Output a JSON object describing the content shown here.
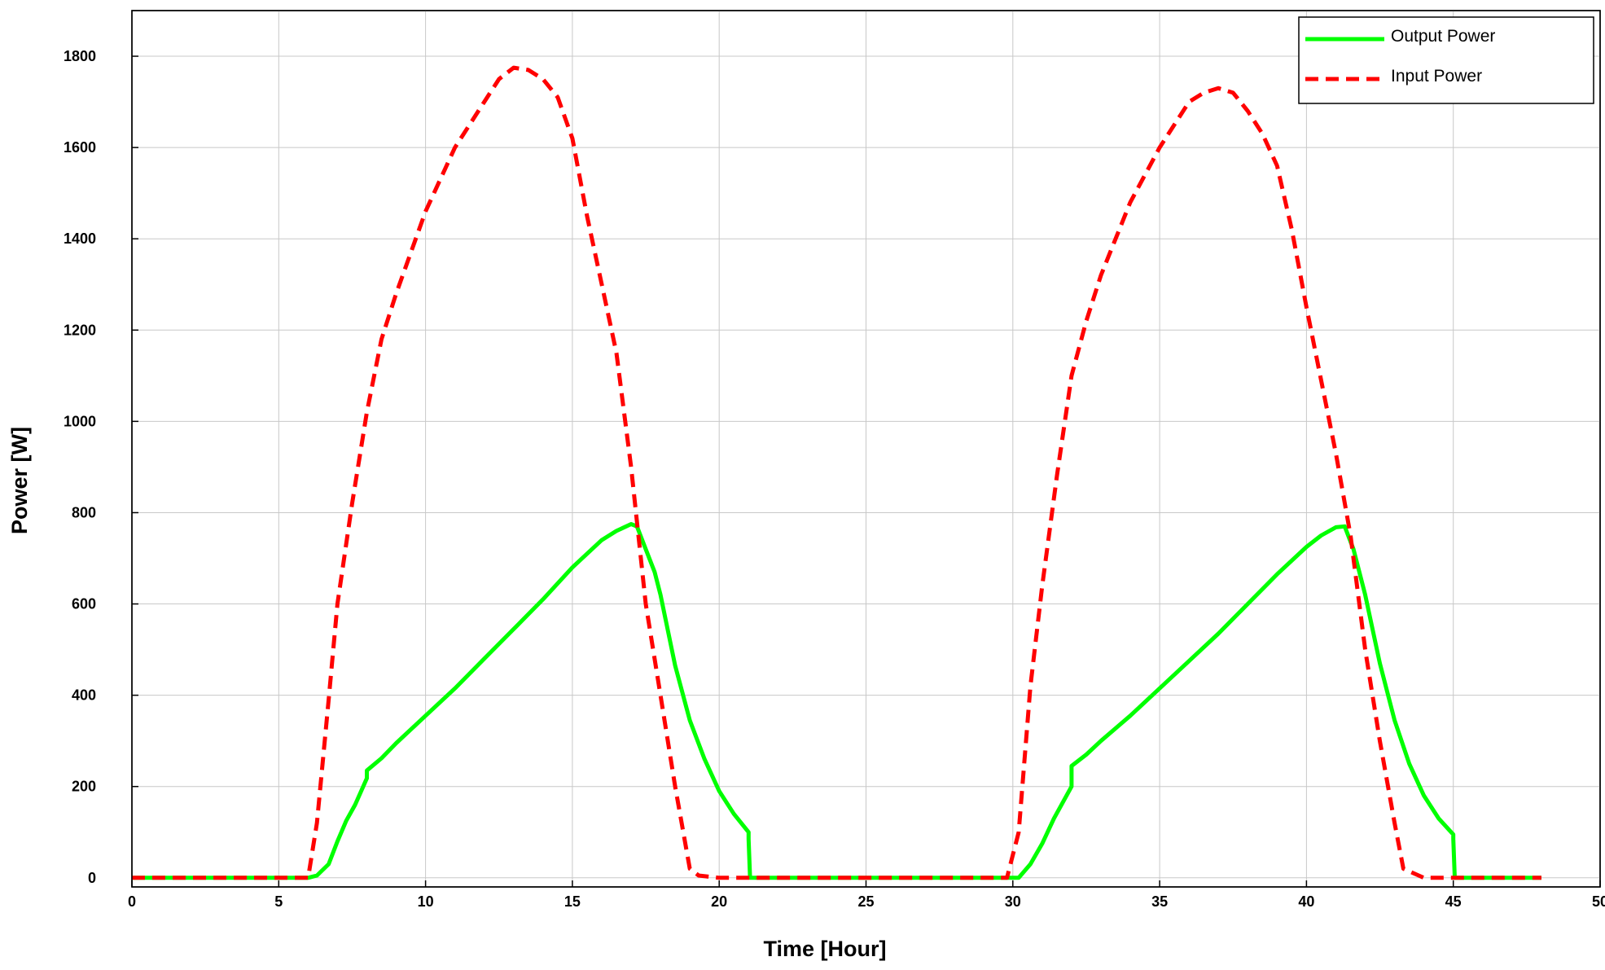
{
  "chart_data": {
    "type": "line",
    "title": "",
    "xlabel": "Time [Hour]",
    "ylabel": "Power [W]",
    "xlim": [
      0,
      50
    ],
    "ylim": [
      -20,
      1900
    ],
    "x_ticks": [
      0,
      5,
      10,
      15,
      20,
      25,
      30,
      35,
      40,
      45,
      50
    ],
    "y_ticks": [
      0,
      200,
      400,
      600,
      800,
      1000,
      1200,
      1400,
      1600,
      1800
    ],
    "grid": true,
    "legend_position": "top-right",
    "series": [
      {
        "name": "Output Power",
        "color": "#00ff00",
        "style": "solid",
        "x": [
          0,
          6.0,
          6.3,
          6.7,
          7.0,
          7.3,
          7.6,
          8.0,
          8.0,
          8.5,
          9.0,
          10.0,
          11.0,
          12.0,
          13.0,
          14.0,
          15.0,
          16.0,
          16.5,
          17.0,
          17.2,
          17.5,
          17.8,
          18.0,
          18.5,
          19.0,
          19.5,
          20.0,
          20.5,
          21.0,
          21.0,
          21.05,
          29.8,
          30.2,
          30.6,
          31.0,
          31.4,
          32.0,
          32.0,
          32.5,
          33.0,
          34.0,
          35.0,
          36.0,
          37.0,
          38.0,
          39.0,
          40.0,
          40.5,
          41.0,
          41.3,
          41.6,
          42.0,
          42.5,
          43.0,
          43.5,
          44.0,
          44.5,
          45.0,
          45.0,
          45.05,
          48.0
        ],
        "y": [
          0,
          0,
          5,
          30,
          80,
          125,
          160,
          218,
          235,
          262,
          295,
          355,
          415,
          480,
          545,
          610,
          680,
          740,
          760,
          775,
          770,
          720,
          670,
          620,
          465,
          345,
          260,
          190,
          140,
          100,
          85,
          0,
          0,
          0,
          30,
          75,
          130,
          200,
          245,
          270,
          300,
          355,
          415,
          475,
          535,
          600,
          665,
          725,
          750,
          768,
          770,
          720,
          620,
          470,
          345,
          250,
          180,
          130,
          95,
          85,
          0,
          0
        ]
      },
      {
        "name": "Input Power",
        "color": "#ff0000",
        "style": "dashed",
        "x": [
          0,
          6.0,
          6.3,
          6.7,
          7.0,
          7.5,
          8.0,
          8.5,
          9.0,
          10.0,
          11.0,
          12.0,
          12.5,
          13.0,
          13.5,
          14.0,
          14.5,
          15.0,
          15.5,
          16.0,
          16.5,
          17.0,
          17.5,
          18.0,
          18.5,
          19.0,
          19.3,
          20.0,
          21.0,
          29.8,
          30.2,
          30.6,
          31.0,
          31.5,
          32.0,
          32.5,
          33.0,
          34.0,
          35.0,
          36.0,
          36.5,
          37.0,
          37.5,
          38.0,
          38.5,
          39.0,
          39.5,
          40.0,
          40.5,
          41.0,
          41.5,
          42.0,
          42.5,
          43.0,
          43.3,
          44.0,
          48.0
        ],
        "y": [
          0,
          0,
          120,
          390,
          600,
          820,
          1020,
          1180,
          1280,
          1460,
          1600,
          1700,
          1750,
          1775,
          1770,
          1750,
          1710,
          1620,
          1450,
          1300,
          1150,
          900,
          600,
          400,
          200,
          20,
          5,
          0,
          0,
          0,
          100,
          420,
          640,
          880,
          1100,
          1220,
          1320,
          1480,
          1600,
          1700,
          1720,
          1730,
          1720,
          1680,
          1630,
          1560,
          1420,
          1250,
          1090,
          930,
          750,
          500,
          300,
          120,
          20,
          0,
          0
        ]
      }
    ]
  }
}
